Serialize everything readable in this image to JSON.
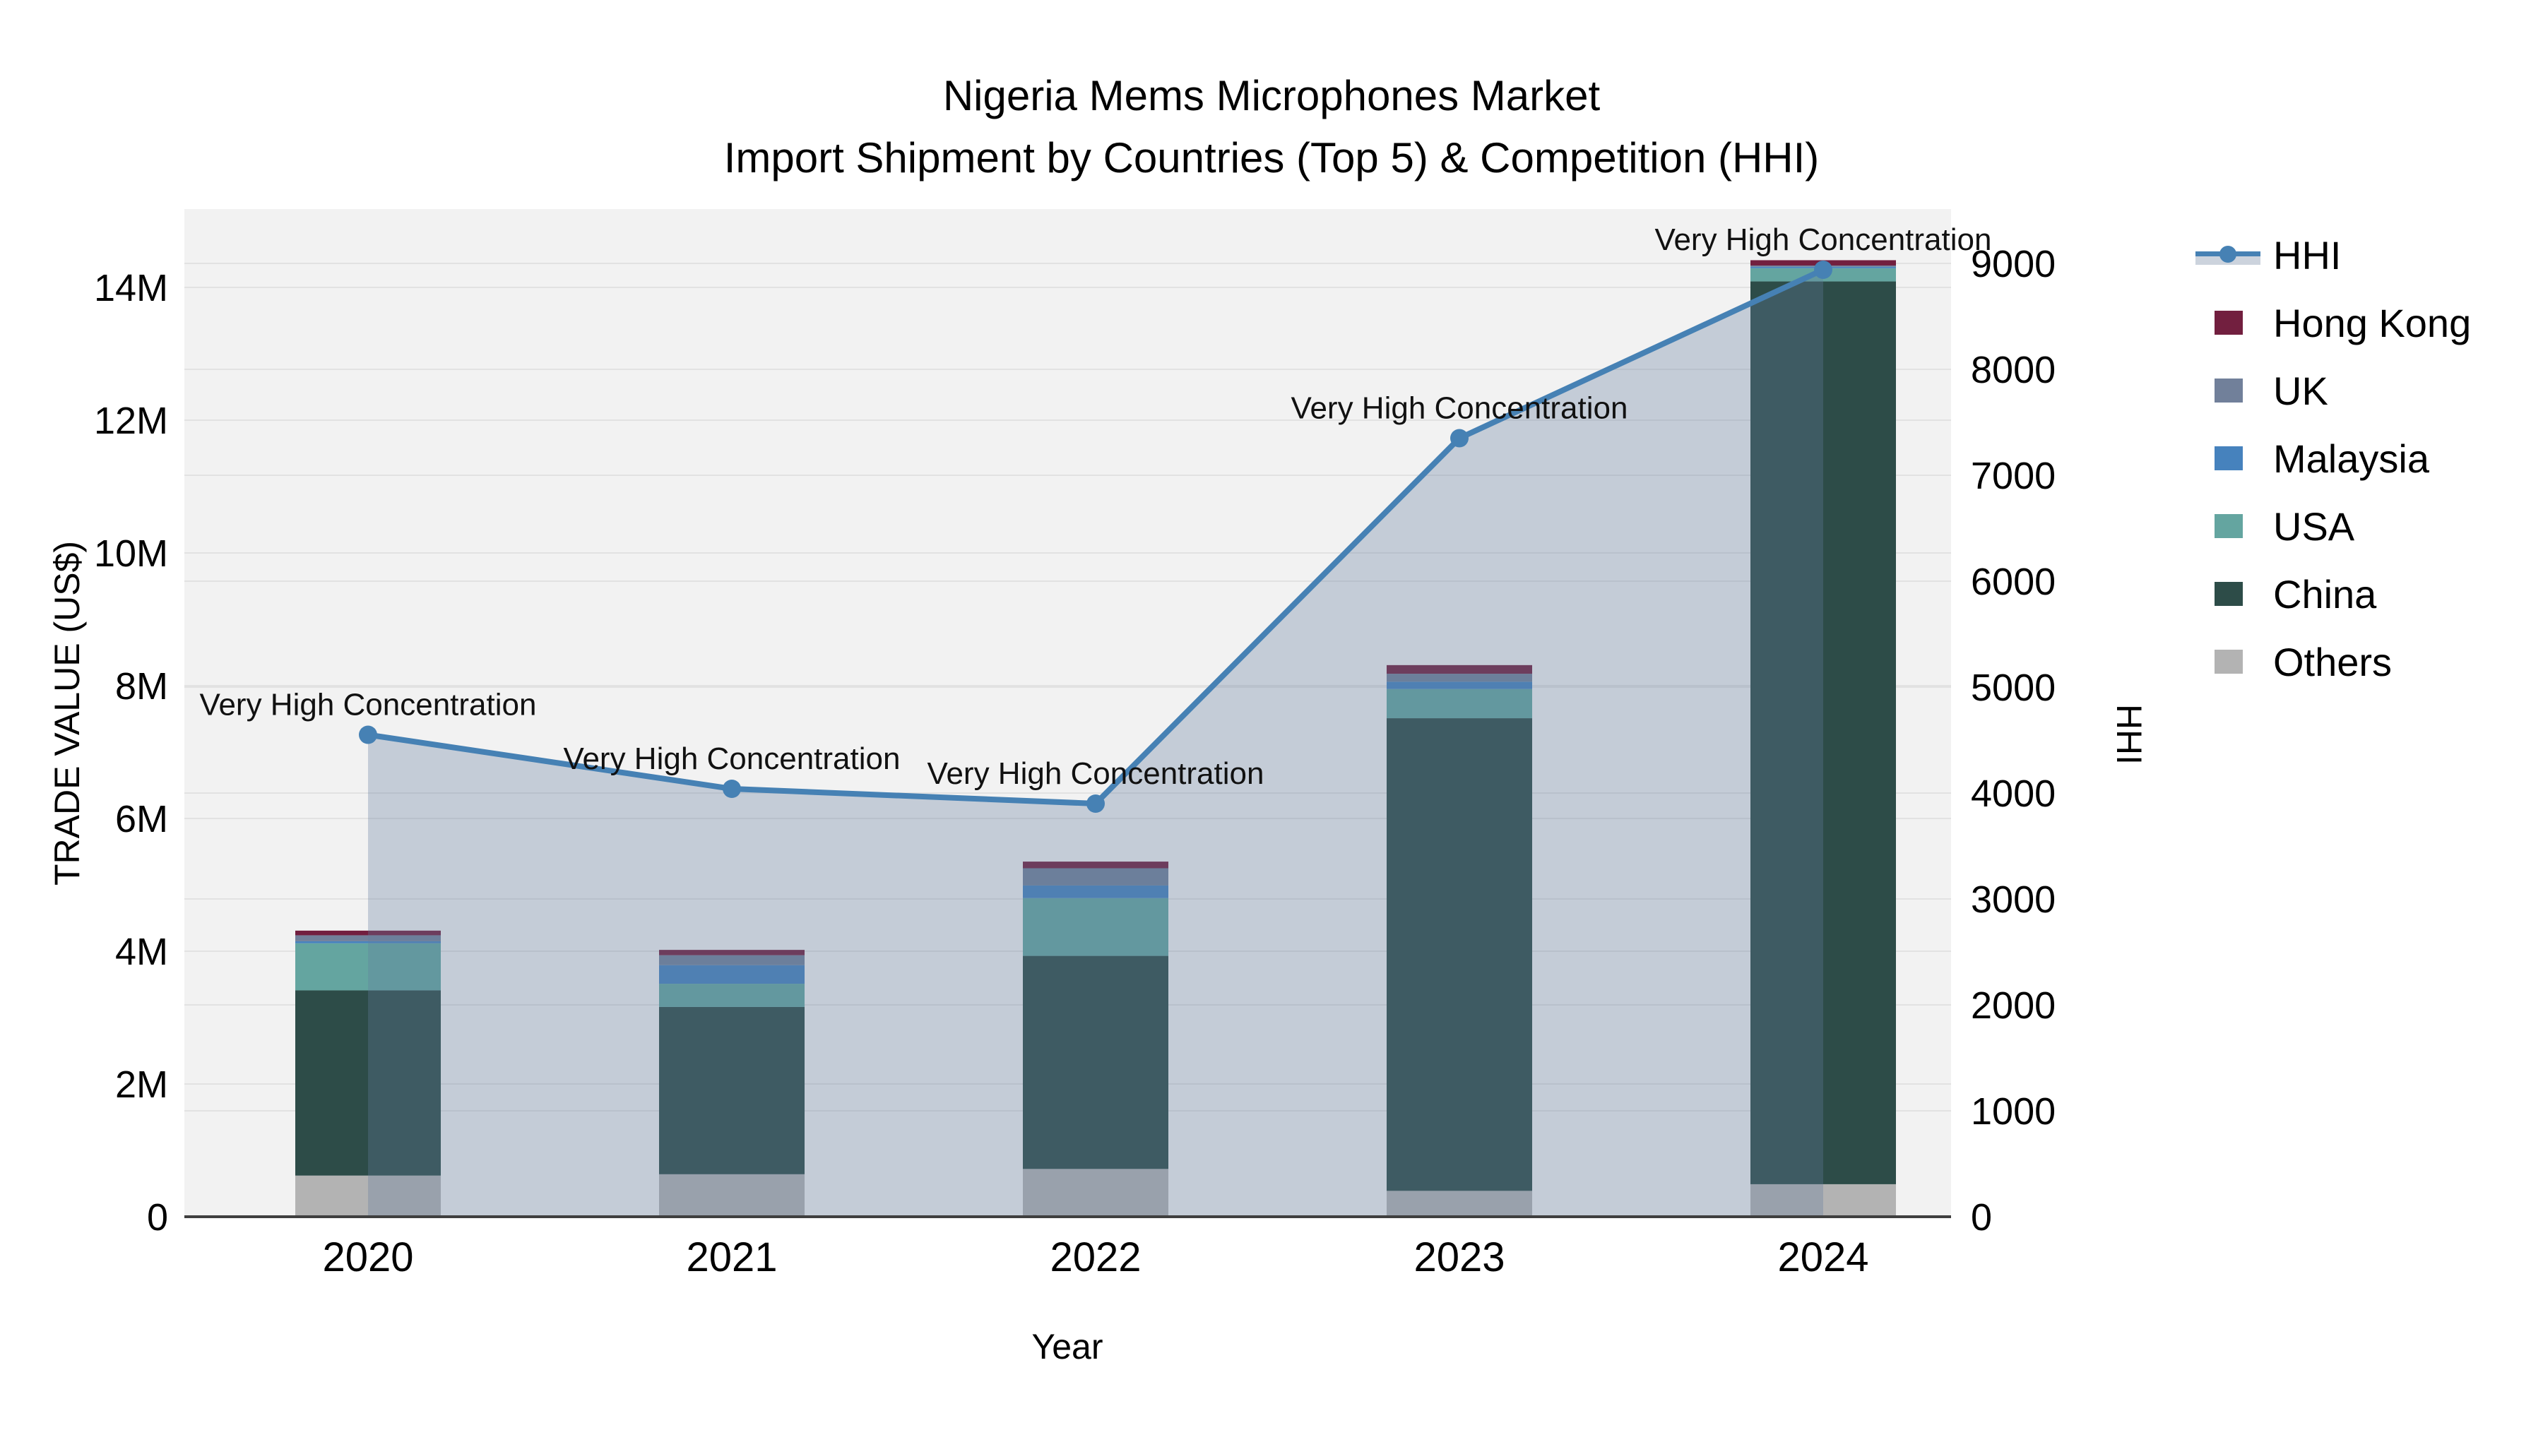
{
  "title": {
    "line1": "Nigeria Mems Microphones Market",
    "line2": "Import Shipment by Countries (Top 5) & Competition (HHI)"
  },
  "axes": {
    "y_left": {
      "title": "TRADE VALUE (US$)",
      "tick_labels": [
        "0",
        "2M",
        "4M",
        "6M",
        "8M",
        "10M",
        "12M",
        "14M"
      ],
      "max": 14000000
    },
    "y_right": {
      "title": "HHI",
      "tick_labels": [
        "0",
        "1000",
        "2000",
        "3000",
        "4000",
        "5000",
        "6000",
        "7000",
        "8000",
        "9000"
      ],
      "max": 9000
    },
    "x": {
      "title": "Year"
    }
  },
  "legend": [
    {
      "label": "HHI",
      "type": "line",
      "color": "#4681b4"
    },
    {
      "label": "Hong Kong",
      "type": "swatch",
      "color": "#721f3f"
    },
    {
      "label": "UK",
      "type": "swatch",
      "color": "#71809a"
    },
    {
      "label": "Malaysia",
      "type": "swatch",
      "color": "#4682bd"
    },
    {
      "label": "USA",
      "type": "swatch",
      "color": "#64a5a0"
    },
    {
      "label": "China",
      "type": "swatch",
      "color": "#2d4c48"
    },
    {
      "label": "Others",
      "type": "swatch",
      "color": "#b3b3b3"
    }
  ],
  "chart_data": {
    "type": "bar+line",
    "categories": [
      "2020",
      "2021",
      "2022",
      "2023",
      "2024"
    ],
    "bar_unit": "US$",
    "stack_order_bottom_to_top": [
      "Others",
      "China",
      "USA",
      "Malaysia",
      "UK",
      "Hong Kong"
    ],
    "series": [
      {
        "name": "Others",
        "color": "#b3b3b3",
        "values": [
          620000,
          640000,
          720000,
          390000,
          490000
        ]
      },
      {
        "name": "China",
        "color": "#2d4c48",
        "values": [
          2790000,
          2520000,
          3210000,
          7120000,
          13600000
        ]
      },
      {
        "name": "USA",
        "color": "#64a5a0",
        "values": [
          710000,
          350000,
          870000,
          440000,
          200000
        ]
      },
      {
        "name": "Malaysia",
        "color": "#4682bd",
        "values": [
          30000,
          280000,
          190000,
          110000,
          20000
        ]
      },
      {
        "name": "UK",
        "color": "#71809a",
        "values": [
          90000,
          150000,
          260000,
          120000,
          20000
        ]
      },
      {
        "name": "Hong Kong",
        "color": "#721f3f",
        "values": [
          70000,
          80000,
          100000,
          130000,
          80000
        ]
      }
    ],
    "bar_totals": [
      4310000,
      4020000,
      5350000,
      8310000,
      14410000
    ],
    "line": {
      "name": "HHI",
      "axis": "right",
      "color": "#4681b4",
      "area_fill": "rgba(100,125,158,0.32)",
      "values": [
        4550,
        4040,
        3900,
        7350,
        8940
      ]
    },
    "annotations": [
      {
        "x": "2020",
        "text": "Very High Concentration"
      },
      {
        "x": "2021",
        "text": "Very High Concentration"
      },
      {
        "x": "2022",
        "text": "Very High Concentration"
      },
      {
        "x": "2023",
        "text": "Very High Concentration"
      },
      {
        "x": "2024",
        "text": "Very High Concentration"
      }
    ],
    "layout": {
      "plot_bg": "#f2f2f2",
      "grid_color": "#e2e2e2",
      "zero_line_color": "#3f3f3f",
      "ylim_left": [
        0,
        14893617
      ],
      "ylim_right": [
        0,
        9513
      ],
      "grid": true,
      "legend_position": "right"
    }
  }
}
